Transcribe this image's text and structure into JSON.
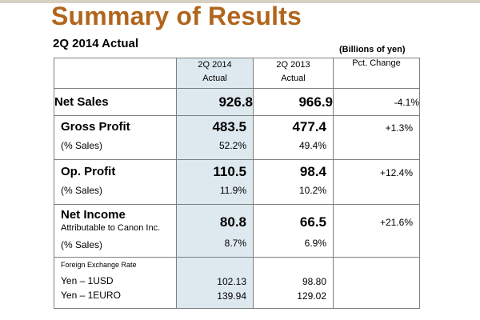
{
  "slide": {
    "title": "Summary of Results",
    "subtitle": "2Q 2014 Actual",
    "unit": "(Billions of yen)"
  },
  "header": {
    "col2014_line1": "2Q 2014",
    "col2014_line2": "Actual",
    "col2013_line1": "2Q 2013",
    "col2013_line2": "Actual",
    "pct_change": "Pct.  Change"
  },
  "rows": {
    "net_sales": {
      "label": "Net Sales",
      "y2014": "926.8",
      "y2013": "966.9",
      "pct": "-4.1%"
    },
    "gross_profit": {
      "label": "Gross Profit",
      "y2014": "483.5",
      "y2013": "477.4",
      "pct": "+1.3%",
      "sales_label": "(% Sales)",
      "sales_2014": "52.2%",
      "sales_2013": "49.4%"
    },
    "op_profit": {
      "label": "Op. Profit",
      "y2014": "110.5",
      "y2013": "98.4",
      "pct": "+12.4%",
      "sales_label": "(% Sales)",
      "sales_2014": "11.9%",
      "sales_2013": "10.2%"
    },
    "net_income": {
      "label": "Net Income",
      "sublabel": "Attributable to Canon Inc.",
      "y2014": "80.8",
      "y2013": "66.5",
      "pct": "+21.6%",
      "sales_label": "(% Sales)",
      "sales_2014": "8.7%",
      "sales_2013": "6.9%"
    }
  },
  "fx": {
    "heading": "Foreign Exchange Rate",
    "usd_label": "Yen – 1USD",
    "usd_2014": "102.13",
    "usd_2013": "98.80",
    "euro_label": "Yen – 1EURO",
    "euro_2014": "139.94",
    "euro_2013": "129.02"
  },
  "colors": {
    "title": "#b0651d",
    "shade": "#dde8ef",
    "border": "#7f7f7f"
  }
}
